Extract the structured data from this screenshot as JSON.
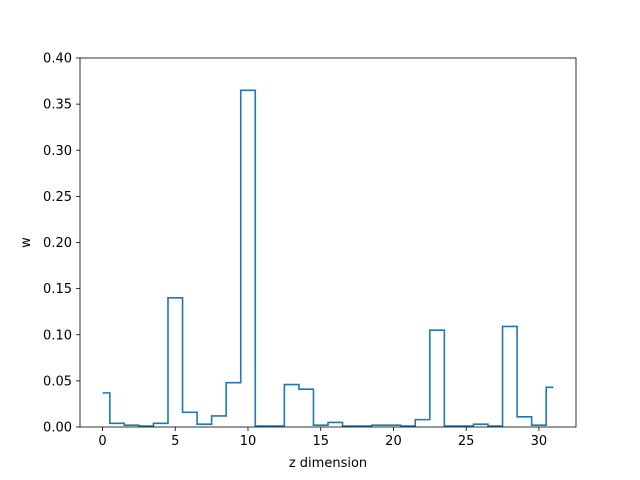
{
  "chart_data": {
    "type": "line",
    "drawstyle": "steps-mid",
    "xlabel": "z dimension",
    "ylabel": "w",
    "xlim": [
      -1.55,
      32.55
    ],
    "ylim": [
      0,
      0.4
    ],
    "xticks": [
      0,
      5,
      10,
      15,
      20,
      25,
      30
    ],
    "yticks": [
      0.0,
      0.05,
      0.1,
      0.15,
      0.2,
      0.25,
      0.3,
      0.35,
      0.4
    ],
    "xtick_labels": [
      "0",
      "5",
      "10",
      "15",
      "20",
      "25",
      "30"
    ],
    "ytick_labels": [
      "0.00",
      "0.05",
      "0.10",
      "0.15",
      "0.20",
      "0.25",
      "0.30",
      "0.35",
      "0.40"
    ],
    "grid": false,
    "line_color": "#1f77b4",
    "x": [
      0,
      1,
      2,
      3,
      4,
      5,
      6,
      7,
      8,
      9,
      10,
      11,
      12,
      13,
      14,
      15,
      16,
      17,
      18,
      19,
      20,
      21,
      22,
      23,
      24,
      25,
      26,
      27,
      28,
      29,
      30,
      31
    ],
    "y": [
      0.037,
      0.004,
      0.002,
      0.001,
      0.004,
      0.14,
      0.016,
      0.003,
      0.012,
      0.048,
      0.365,
      0.001,
      0.001,
      0.046,
      0.041,
      0.002,
      0.005,
      0.001,
      0.001,
      0.002,
      0.002,
      0.001,
      0.008,
      0.105,
      0.001,
      0.001,
      0.003,
      0.001,
      0.109,
      0.011,
      0.002,
      0.043
    ]
  }
}
